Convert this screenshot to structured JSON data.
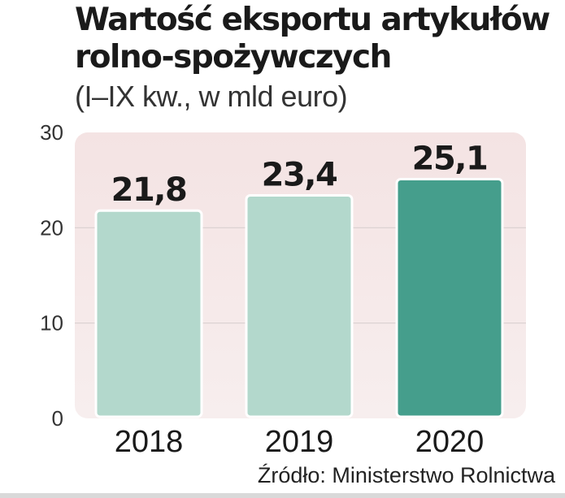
{
  "chart_data": {
    "type": "bar",
    "title": "Wartość eksportu artykułów rolno-spożywczych",
    "subtitle": "(I–IX kw., w mld euro)",
    "categories": [
      "2018",
      "2019",
      "2020"
    ],
    "values": [
      21.8,
      23.4,
      25.1
    ],
    "value_labels": [
      "21,8",
      "23,4",
      "25,1"
    ],
    "yticks": [
      "0",
      "10",
      "20",
      "30"
    ],
    "ylim": [
      0,
      30
    ],
    "grid": true,
    "source": "Źródło: Ministerstwo Rolnictwa"
  },
  "colors": {
    "bar_light": "#b3d8cc",
    "bar_highlight": "#459e8c",
    "plot_background": "#f3e6e6",
    "gridline": "#d9cfcf"
  }
}
